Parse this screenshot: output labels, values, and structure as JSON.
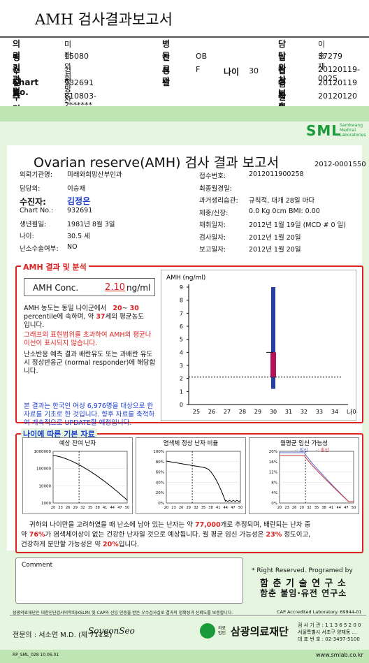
{
  "header": {
    "title": "AMH 검사결과보고서",
    "rows": [
      [
        {
          "l": "의뢰기관명",
          "v": "미래와희망산부인과"
        },
        {
          "l": "병동",
          "v": ""
        },
        {
          "l": "담당의사",
          "v": "이승재"
        }
      ],
      [
        {
          "l": "병원코드",
          "v": "15080"
        },
        {
          "l": "진료과",
          "v": "OB"
        },
        {
          "l": "임상정보",
          "v": "37279"
        }
      ],
      [
        {
          "l": "수진자",
          "v": "김정은"
        },
        {
          "l": "성별",
          "v": "F"
        },
        {
          "l": "접수번호",
          "v": "20120119-0025"
        }
      ],
      [
        {
          "l": "Chart No.",
          "v": "932691"
        },
        {
          "l": "",
          "v": ""
        },
        {
          "l": "검사의뢰",
          "v": "20120119"
        }
      ],
      [
        {
          "l": "주민번호",
          "v": "810803-2******"
        },
        {
          "l": "",
          "v": ""
        },
        {
          "l": "결과보고",
          "v": "20120120"
        }
      ]
    ],
    "age_label": "나이",
    "age_value": "30"
  },
  "report": {
    "logo": "SML",
    "logo_sub": "Samkwang Medical Laboratories",
    "heading": "Ovarian reserve(AMH) 검사 결과 보고서",
    "report_no": "2012-0001550",
    "left_fields": [
      {
        "l": "의뢰기관명:",
        "v": "미래와희망산부인과"
      },
      {
        "l": "담당의:",
        "v": "이승재"
      },
      {
        "l": "수진자:",
        "v": "김정은"
      },
      {
        "l": "Chart No.:",
        "v": "932691"
      },
      {
        "l": "생년월일:",
        "v": "1981년 8월 3일"
      },
      {
        "l": "나이:",
        "v": "30.5 세"
      },
      {
        "l": "난소수술여부:",
        "v": "NO"
      }
    ],
    "right_fields": [
      {
        "l": "접수번호:",
        "v": "2012011900258"
      },
      {
        "l": "최종월경일:",
        "v": ""
      },
      {
        "l": "과거생리습관:",
        "v": "규칙적,  대개   28일 마다"
      },
      {
        "l": "체중/신장:",
        "v": "0.0 Kg       0cm    BMI:    0.00"
      },
      {
        "l": "채취일자:",
        "v": "2012년 1월 19일   (MCD # 0 일)"
      },
      {
        "l": "검사일자:",
        "v": "2012년 1월 20일"
      },
      {
        "l": "보고일자:",
        "v": "2012년 1월 20일"
      }
    ],
    "result_section": "AMH 결과 및 분석",
    "amh_label": "AMH Conc.",
    "amh_value": "2.10",
    "amh_unit": "ng/ml",
    "analysis": {
      "p1a": "AMH 농도는 동일 나이군에서",
      "p1_range_lo": "20",
      "p1_range_hi": "30",
      "p1b": "percentile에 속하며, 약",
      "p1_age": "37",
      "p1c": "세의 평균농도",
      "p1d": "입니다.",
      "p2": "그래프의 표현범위를 초과하여 AMH의 평균나이선이 표시되지 않습니다.",
      "p3": "난소반응 예측 결과 배란유도 또는 과배란 유도시 정상반응군 (normal responder)에 해당합니다.",
      "p4": "본 결과는 한국인 여성 6,976명을 대상으로 한 자료를 기초로 한 것입니다. 향후 자료를 축적하여 계속적으로 UPDATE할 예정입니다."
    },
    "age_section": "나이에 따른 기본 자료",
    "mini_titles": [
      "예상 잔여 난자",
      "염색체 정상 난자 비율",
      "월평균 임신 가능성"
    ],
    "legend_preg": "임신",
    "legend_birth": "출산",
    "summary": {
      "s1": "귀하의 나이만을 고려하였을 때 난소에 남아 있는 난자는 약",
      "eggs": "77,000",
      "s2": "개로 추정되며, 배란되는 난자 중",
      "s3": "약",
      "pct_normal": "76%",
      "s4": "가 염색체이상이 없는 건강한 난자일 것으로 예상됩니다. 월 평균 임신 가능성은",
      "pct_preg": "23%",
      "s5": "정도이고,",
      "s6": "건강하게 분만할 가능성은 약",
      "pct_birth": "20%",
      "s7": "입니다."
    },
    "comment_label": "Comment",
    "rights": "* Right Reserved. Programed by",
    "inst1": "함 춘 기 술 연 구 소",
    "inst2": "함춘 불임·유전 연구소",
    "cert_text": "삼광의료재단은 대한진단검사의학회(KSLM) 및 CAP의 신임 인증을 받은 우수검사실로 결과의 정확성과 신뢰도를 보증합니다.",
    "cap": "CAP Accredited Laboratory. 69944-01",
    "doctor_label": "전문의 : 서소연 M.D. (제 711호)",
    "signature": "SoyeonSeo",
    "foundation": "삼광의료재단",
    "foundation_small": "의료법인",
    "contact": [
      "검 사 기 관 : 1 1 3 6 5 2 0 0",
      "서울특별시 서초구 양재동 ...",
      "대 표 번 호 : 02-3497-5100"
    ],
    "footer_left": "RP_SML_028  10.06.01",
    "footer_right": "www.smlab.co.kr"
  },
  "chart_data": [
    {
      "type": "bar",
      "ylabel": "AMH (ng/ml)",
      "x": [
        25,
        26,
        27,
        28,
        29,
        30,
        31,
        32,
        33,
        34
      ],
      "xlabel": "나이",
      "ylim": [
        0,
        9
      ],
      "range_bar": {
        "age": 30,
        "low": 1.2,
        "high": 9.0
      },
      "iqr": {
        "age": 30,
        "low": 2.1,
        "high": 4.0
      },
      "patient_value": 2.1,
      "reference_line": 2.1
    },
    {
      "type": "line",
      "title": "예상 잔여 난자",
      "x_ticks": [
        20,
        23,
        26,
        29,
        32,
        35,
        38,
        41,
        44,
        47,
        50
      ],
      "y_ticks": [
        "1000000",
        "100000",
        "10000",
        "1000"
      ],
      "log_scale": true,
      "current_age": 30.5
    },
    {
      "type": "line",
      "title": "염색체 정상 난자 비율",
      "x_ticks": [
        20,
        23,
        26,
        29,
        32,
        35,
        38,
        41,
        44,
        47,
        50
      ],
      "y_ticks": [
        "100%",
        "80%",
        "60%",
        "40%",
        "20%",
        "0%"
      ],
      "current_age": 30.5
    },
    {
      "type": "line",
      "title": "월평균 임신 가능성",
      "x_ticks": [
        20,
        23,
        26,
        29,
        32,
        35,
        38,
        41,
        44,
        47,
        50
      ],
      "y_ticks": [
        "20%",
        "16%",
        "12%",
        "8%",
        "4%",
        "0%"
      ],
      "series": [
        {
          "name": "임신",
          "color": "#5a6bd8"
        },
        {
          "name": "출산",
          "color": "#c33"
        }
      ],
      "current_age": 30.5
    }
  ]
}
